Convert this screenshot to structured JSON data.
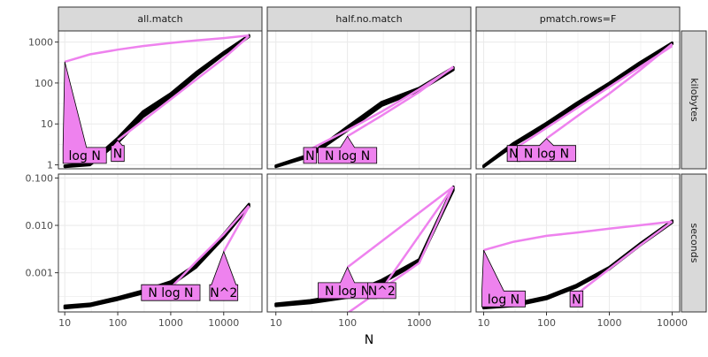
{
  "chart_data": {
    "type": "line",
    "xlabel": "N",
    "x_scale": "log10",
    "y_scale": "log10",
    "columns": [
      "all.match",
      "half.no.match",
      "pmatch.rows=F"
    ],
    "rows": [
      {
        "strip": "kilobytes",
        "y_ticks": [
          "1",
          "10",
          "100",
          "1000"
        ],
        "ylim": [
          1,
          1500
        ]
      },
      {
        "strip": "seconds",
        "y_ticks": [
          "0.001",
          "0.010",
          "0.100"
        ],
        "ylim": [
          0.00018,
          0.1
        ]
      }
    ],
    "panels": [
      {
        "row": 0,
        "col": 0,
        "x_ticks": [
          "10",
          "100",
          "1000",
          "10000"
        ],
        "xlim": [
          10,
          40000
        ],
        "band": [
          [
            10,
            0.9,
            0.95
          ],
          [
            30,
            1.0,
            1.15
          ],
          [
            100,
            3.5,
            4.5
          ],
          [
            300,
            15,
            20
          ],
          [
            1000,
            45,
            55
          ],
          [
            3000,
            150,
            180
          ],
          [
            10000,
            500,
            560
          ],
          [
            30000,
            1350,
            1450
          ]
        ],
        "refs": [
          {
            "label": "log N",
            "points": [
              [
                10,
                330
              ],
              [
                30,
                500
              ],
              [
                100,
                650
              ],
              [
                300,
                800
              ],
              [
                1000,
                950
              ],
              [
                3000,
                1100
              ],
              [
                10000,
                1250
              ],
              [
                30000,
                1450
              ]
            ],
            "tip": [
              10,
              330
            ],
            "box": [
              10,
              1.7
            ],
            "anchor": "left"
          },
          {
            "label": "N",
            "points": [
              [
                100,
                4
              ],
              [
                300,
                12
              ],
              [
                1000,
                40
              ],
              [
                3000,
                120
              ],
              [
                10000,
                400
              ],
              [
                30000,
                1400
              ]
            ],
            "tip": [
              100,
              4
            ],
            "box": [
              100,
              1.9
            ],
            "anchor": "middle"
          }
        ]
      },
      {
        "row": 0,
        "col": 1,
        "x_ticks": [
          "10",
          "100",
          "1000"
        ],
        "xlim": [
          10,
          4000
        ],
        "band": [
          [
            10,
            0.9,
            0.95
          ],
          [
            30,
            1.6,
            1.8
          ],
          [
            100,
            7,
            8.5
          ],
          [
            300,
            28,
            34
          ],
          [
            1000,
            65,
            75
          ],
          [
            3000,
            210,
            240
          ]
        ],
        "refs": [
          {
            "label": "N",
            "points": [
              [
                30,
                2.4
              ],
              [
                100,
                7
              ],
              [
                300,
                20
              ],
              [
                1000,
                70
              ],
              [
                3000,
                240
              ]
            ],
            "tip": [
              30,
              2.4
            ],
            "box": [
              30,
              1.7
            ],
            "anchor": "middle"
          },
          {
            "label": "N log N",
            "points": [
              [
                100,
                5
              ],
              [
                300,
                16
              ],
              [
                1000,
                60
              ],
              [
                3000,
                250
              ]
            ],
            "tip": [
              100,
              5
            ],
            "box": [
              100,
              1.7
            ],
            "anchor": "middle"
          }
        ]
      },
      {
        "row": 0,
        "col": 2,
        "x_ticks": [
          "10",
          "100",
          "1000",
          "10000"
        ],
        "xlim": [
          10,
          10000
        ],
        "band": [
          [
            10,
            0.9,
            0.95
          ],
          [
            30,
            3.0,
            3.4
          ],
          [
            100,
            9,
            10.5
          ],
          [
            300,
            28,
            32
          ],
          [
            1000,
            90,
            100
          ],
          [
            3000,
            280,
            310
          ],
          [
            10000,
            900,
            960
          ]
        ],
        "refs": [
          {
            "label": "N",
            "points": [
              [
                30,
                2.4
              ],
              [
                100,
                8
              ],
              [
                300,
                24
              ],
              [
                1000,
                80
              ],
              [
                3000,
                240
              ],
              [
                10000,
                800
              ]
            ],
            "tip": [
              30,
              2.4
            ],
            "box": [
              30,
              1.9
            ],
            "anchor": "middle"
          },
          {
            "label": "N log N",
            "points": [
              [
                100,
                4.4
              ],
              [
                300,
                15
              ],
              [
                1000,
                55
              ],
              [
                3000,
                200
              ],
              [
                10000,
                900
              ]
            ],
            "tip": [
              100,
              4.4
            ],
            "box": [
              100,
              1.9
            ],
            "anchor": "middle"
          }
        ]
      },
      {
        "row": 1,
        "col": 0,
        "x_ticks": [
          "10",
          "100",
          "1000",
          "10000"
        ],
        "xlim": [
          10,
          40000
        ],
        "band": [
          [
            10,
            0.00018,
            0.0002
          ],
          [
            30,
            0.0002,
            0.00022
          ],
          [
            100,
            0.00027,
            0.0003
          ],
          [
            300,
            0.00037,
            0.00042
          ],
          [
            1000,
            0.00055,
            0.00065
          ],
          [
            3000,
            0.0013,
            0.0015
          ],
          [
            10000,
            0.0055,
            0.0065
          ],
          [
            30000,
            0.025,
            0.028
          ]
        ],
        "refs": [
          {
            "label": "N log N",
            "points": [
              [
                1000,
                0.00048
              ],
              [
                3000,
                0.0017
              ],
              [
                10000,
                0.0065
              ],
              [
                30000,
                0.026
              ]
            ],
            "tip": [
              1000,
              0.00048
            ],
            "box": [
              1000,
              0.00038
            ],
            "anchor": "middle"
          },
          {
            "label": "N^2",
            "points": [
              [
                10000,
                0.0028
              ],
              [
                30000,
                0.025
              ]
            ],
            "tip": [
              10000,
              0.0028
            ],
            "box": [
              10000,
              0.00038
            ],
            "anchor": "middle"
          }
        ]
      },
      {
        "row": 1,
        "col": 1,
        "x_ticks": [
          "10",
          "100",
          "1000"
        ],
        "xlim": [
          10,
          4000
        ],
        "band": [
          [
            10,
            0.0002,
            0.00022
          ],
          [
            30,
            0.00023,
            0.00026
          ],
          [
            100,
            0.0003,
            0.00035
          ],
          [
            300,
            0.0006,
            0.0007
          ],
          [
            1000,
            0.0017,
            0.0019
          ],
          [
            3000,
            0.055,
            0.065
          ]
        ],
        "refs": [
          {
            "label": "N log N",
            "points": [
              [
                100,
                0.00014
              ],
              [
                300,
                0.00045
              ],
              [
                1000,
                0.0016
              ],
              [
                3000,
                0.065
              ]
            ],
            "tip": [
              100,
              0.0013
            ],
            "box": [
              100,
              0.00042
            ],
            "anchor": "middle"
          },
          {
            "label": "N^2",
            "points": [
              [
                300,
                0.00045
              ],
              [
                3000,
                0.065
              ]
            ],
            "tip": [
              300,
              0.00045
            ],
            "box": [
              300,
              0.00042
            ],
            "anchor": "middle"
          },
          {
            "label": "",
            "points": [
              [
                100,
                0.0013
              ],
              [
                3000,
                0.065
              ]
            ],
            "tip": null,
            "box": null,
            "anchor": "middle"
          }
        ]
      },
      {
        "row": 1,
        "col": 2,
        "x_ticks": [
          "10",
          "100",
          "1000",
          "10000"
        ],
        "xlim": [
          10,
          10000
        ],
        "band": [
          [
            10,
            0.00018,
            0.0002
          ],
          [
            30,
            0.0002,
            0.00022
          ],
          [
            100,
            0.00028,
            0.00031
          ],
          [
            300,
            0.0005,
            0.00055
          ],
          [
            1000,
            0.0012,
            0.0013
          ],
          [
            3000,
            0.0037,
            0.004
          ],
          [
            10000,
            0.0115,
            0.0125
          ]
        ],
        "refs": [
          {
            "label": "log N",
            "points": [
              [
                10,
                0.003
              ],
              [
                30,
                0.0045
              ],
              [
                100,
                0.006
              ],
              [
                300,
                0.007
              ],
              [
                1000,
                0.0085
              ],
              [
                3000,
                0.01
              ],
              [
                10000,
                0.012
              ]
            ],
            "tip": [
              10,
              0.003
            ],
            "box": [
              10,
              0.00028
            ],
            "anchor": "left"
          },
          {
            "label": "N",
            "points": [
              [
                300,
                0.00035
              ],
              [
                1000,
                0.0012
              ],
              [
                3000,
                0.0037
              ],
              [
                10000,
                0.012
              ]
            ],
            "tip": [
              300,
              0.00035
            ],
            "box": [
              300,
              0.00028
            ],
            "anchor": "middle"
          }
        ]
      }
    ],
    "colors": {
      "measured": "#000000",
      "reference": "#ee82ee",
      "panel_bg": "#ffffff",
      "strip_bg": "#d9d9d9",
      "grid": "#ebebeb",
      "border": "#333333"
    }
  }
}
